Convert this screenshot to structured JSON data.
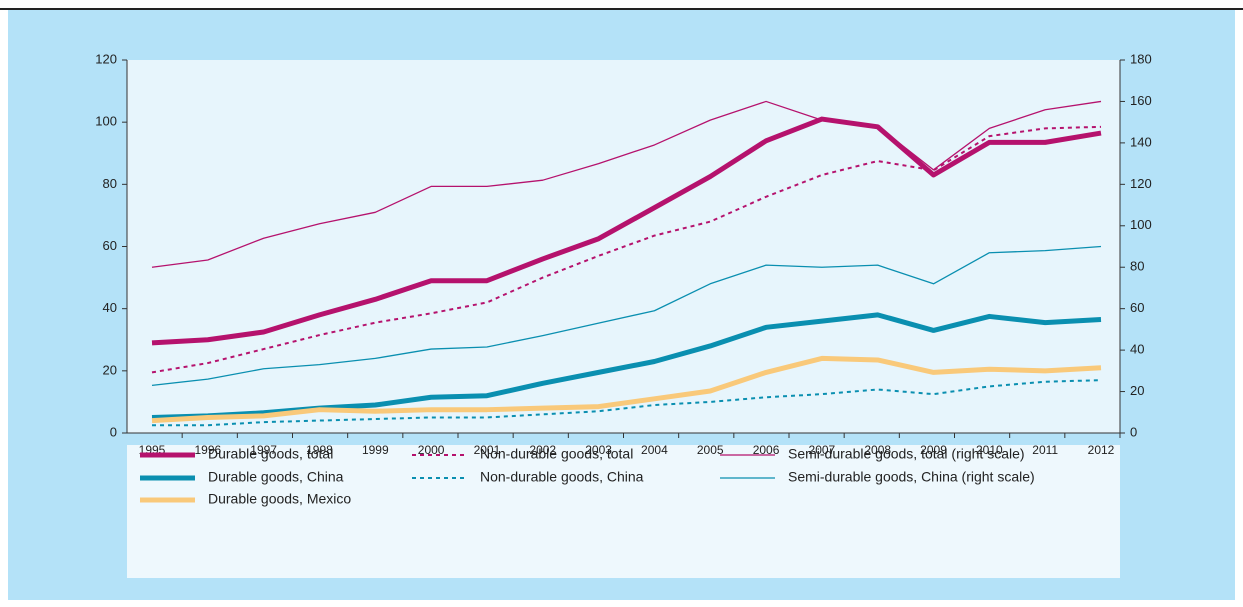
{
  "chart_data": {
    "type": "line",
    "categories": [
      "1995",
      "1996",
      "1997",
      "1998",
      "1999",
      "2000",
      "2001",
      "2002",
      "2003",
      "2004",
      "2005",
      "2006",
      "2007",
      "2008",
      "2009",
      "2010",
      "2011",
      "2012"
    ],
    "ylim": [
      0,
      120
    ],
    "yticks": [
      0,
      20,
      40,
      60,
      80,
      100,
      120
    ],
    "y2lim": [
      0,
      180
    ],
    "y2ticks": [
      0,
      20,
      40,
      60,
      80,
      100,
      120,
      140,
      160,
      180
    ],
    "series": [
      {
        "name": "Durable goods, total",
        "color": "#b5126d",
        "width": 5,
        "dash": "none",
        "axis": "y",
        "values": [
          29,
          30,
          32.5,
          38,
          43,
          49,
          49,
          56,
          62.5,
          72.5,
          82.5,
          94,
          101,
          98.5,
          83,
          93.5,
          93.5,
          96.5
        ]
      },
      {
        "name": "Non-durable goods, total",
        "color": "#b5126d",
        "width": 2,
        "dash": "4 4",
        "axis": "y",
        "values": [
          19.5,
          22.5,
          27,
          31.5,
          35.5,
          38.5,
          42,
          50,
          57,
          63.5,
          68,
          76,
          83,
          87.5,
          84.5,
          95.5,
          98,
          98.5
        ]
      },
      {
        "name": "Semi-durable goods, total (right scale)",
        "color": "#b5126d",
        "width": 1.3,
        "dash": "none",
        "axis": "y2",
        "values": [
          80,
          83.5,
          94,
          101,
          106.5,
          119,
          119,
          122,
          130,
          139,
          151,
          160,
          151,
          148,
          127,
          147,
          156,
          160
        ]
      },
      {
        "name": "Durable goods, China",
        "color": "#0a8fb0",
        "width": 5,
        "dash": "none",
        "axis": "y",
        "values": [
          5,
          5.5,
          6.5,
          8,
          9,
          11.5,
          12,
          16,
          19.5,
          23,
          28,
          34,
          36,
          38,
          33,
          37.5,
          35.5,
          36.5
        ]
      },
      {
        "name": "Non-durable goods, China",
        "color": "#0a8fb0",
        "width": 2,
        "dash": "4 4",
        "axis": "y",
        "values": [
          2.5,
          2.5,
          3.5,
          4,
          4.5,
          5,
          5,
          6,
          7,
          9,
          10,
          11.5,
          12.5,
          14,
          12.5,
          15,
          16.5,
          17
        ]
      },
      {
        "name": "Semi-durable goods, China (right scale)",
        "color": "#0a8fb0",
        "width": 1.3,
        "dash": "none",
        "axis": "y2",
        "values": [
          23,
          26,
          31,
          33,
          36,
          40.5,
          41.5,
          47,
          53,
          59,
          72,
          81,
          80,
          81,
          72,
          87,
          88,
          90
        ]
      },
      {
        "name": "Durable goods, Mexico",
        "color": "#f9c97a",
        "width": 5,
        "dash": "none",
        "axis": "y",
        "values": [
          4,
          5,
          5.5,
          7.5,
          7,
          7.5,
          7.5,
          8,
          8.5,
          11,
          13.5,
          19.5,
          24,
          23.5,
          19.5,
          20.5,
          20,
          21
        ]
      }
    ]
  }
}
